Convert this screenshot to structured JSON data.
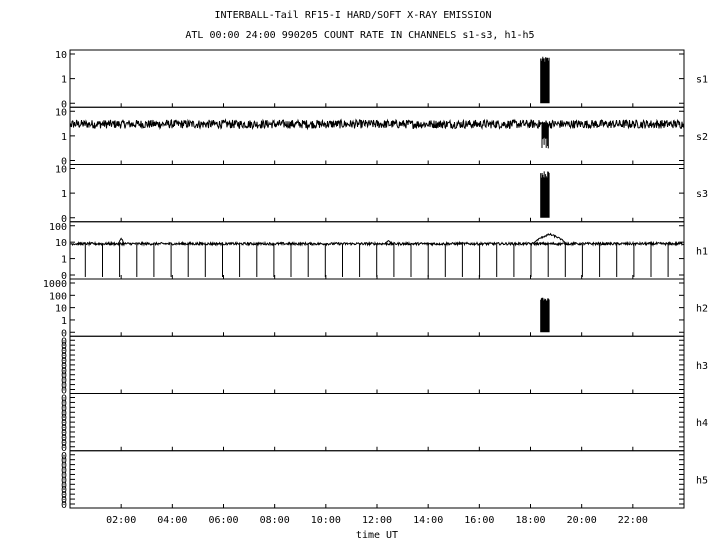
{
  "header": {
    "title": "INTERBALL-Tail RF15-I HARD/SOFT X-RAY EMISSION",
    "subtitle": "ATL 00:00 24:00 990205  COUNT RATE IN CHANNELS s1-s3, h1-h5"
  },
  "chart_data": {
    "type": "line",
    "x_axis": {
      "label": "time UT",
      "range_hours": [
        0,
        24
      ],
      "tick_labels": [
        "02:00",
        "04:00",
        "06:00",
        "08:00",
        "10:00",
        "12:00",
        "14:00",
        "16:00",
        "18:00",
        "20:00",
        "22:00"
      ],
      "tick_hours": [
        2,
        4,
        6,
        8,
        10,
        12,
        14,
        16,
        18,
        20,
        22
      ]
    },
    "y_scale": "log",
    "grid": false,
    "panels": [
      {
        "channel": "s1",
        "y_tick_labels": [
          "10",
          "1",
          "0"
        ],
        "y_range": [
          0,
          10
        ],
        "baseline": 0,
        "noise": 0,
        "events": [
          {
            "start_hour": 18.4,
            "end_hour": 18.75,
            "level": 6,
            "kind": "burst"
          }
        ]
      },
      {
        "channel": "s2",
        "y_tick_labels": [
          "10",
          "1",
          "0"
        ],
        "y_range": [
          0,
          10
        ],
        "baseline": 3,
        "noise": 0.35,
        "events": [
          {
            "start_hour": 18.45,
            "end_hour": 18.7,
            "level": 0.6,
            "kind": "dip"
          }
        ]
      },
      {
        "channel": "s3",
        "y_tick_labels": [
          "10",
          "1",
          "0"
        ],
        "y_range": [
          0,
          10
        ],
        "baseline": 0,
        "noise": 0,
        "events": [
          {
            "start_hour": 18.4,
            "end_hour": 18.75,
            "level": 6,
            "kind": "burst"
          }
        ]
      },
      {
        "channel": "h1",
        "y_tick_labels": [
          "100",
          "10",
          "1",
          "0"
        ],
        "y_range": [
          0,
          100
        ],
        "baseline": 8,
        "noise": 0.15,
        "events": [
          {
            "start_hour": 1.9,
            "end_hour": 2.1,
            "level": 18,
            "kind": "spike"
          },
          {
            "start_hour": 12.3,
            "end_hour": 12.6,
            "level": 12,
            "kind": "spike"
          },
          {
            "start_hour": 18.1,
            "end_hour": 19.4,
            "level": 30,
            "kind": "hump"
          }
        ],
        "dropout_interval_hours": 0.67
      },
      {
        "channel": "h2",
        "y_tick_labels": [
          "1000",
          "100",
          "10",
          "1",
          "0"
        ],
        "y_range": [
          0,
          1000
        ],
        "baseline": 0,
        "noise": 0,
        "events": [
          {
            "start_hour": 18.4,
            "end_hour": 18.75,
            "level": 50,
            "kind": "burst"
          }
        ]
      },
      {
        "channel": "h3",
        "y_tick_labels": [
          "0",
          "0",
          "0",
          "0",
          "0",
          "0",
          "0",
          "0",
          "0",
          "0",
          "0"
        ],
        "empty": true
      },
      {
        "channel": "h4",
        "y_tick_labels": [
          "0",
          "0",
          "0",
          "0",
          "0",
          "0",
          "0",
          "0",
          "0",
          "0",
          "0"
        ],
        "empty": true
      },
      {
        "channel": "h5",
        "y_tick_labels": [
          "0",
          "0",
          "0",
          "0",
          "0",
          "0",
          "0",
          "0",
          "0",
          "0",
          "0"
        ],
        "empty": true
      }
    ]
  }
}
